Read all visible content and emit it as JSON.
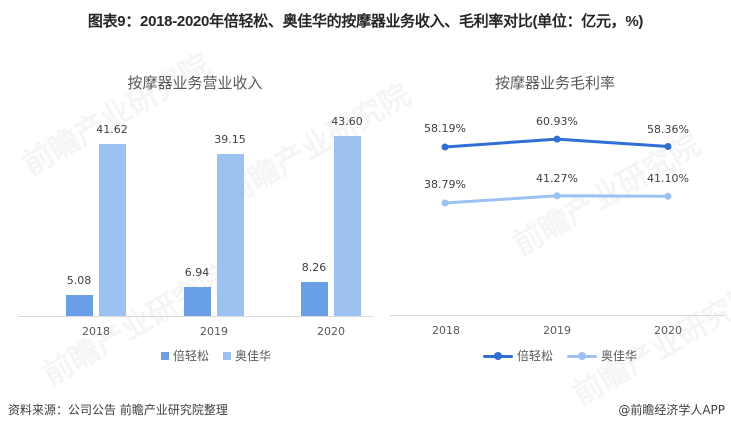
{
  "figure_title": "图表9：2018-2020年倍轻松、奥佳华的按摩器业务收入、毛利率对比(单位：亿元，%)",
  "footer": {
    "source": "资料来源：公司公告 前瞻产业研究院整理",
    "credit": "@前瞻经济学人APP"
  },
  "watermark": "前瞻产业研究院",
  "colors": {
    "beiqingsong": "#2f6fd6",
    "beiqingsong_bar": "#6aa0e8",
    "aojiahua": "#9cc2f2"
  },
  "chart_data": [
    {
      "type": "bar",
      "title": "按摩器业务营业收入",
      "categories": [
        "2018",
        "2019",
        "2020"
      ],
      "series": [
        {
          "name": "倍轻松",
          "values": [
            5.08,
            6.94,
            8.26
          ],
          "labels": [
            "5.08",
            "6.94",
            "8.26"
          ]
        },
        {
          "name": "奥佳华",
          "values": [
            41.62,
            39.15,
            43.6
          ],
          "labels": [
            "41.62",
            "39.15",
            "43.60"
          ]
        }
      ],
      "xlabel": "",
      "ylabel": "",
      "unit": "亿元",
      "ylim": [
        0,
        50
      ],
      "grid": false,
      "legend_position": "bottom"
    },
    {
      "type": "line",
      "title": "按摩器业务毛利率",
      "categories": [
        "2018",
        "2019",
        "2020"
      ],
      "series": [
        {
          "name": "倍轻松",
          "values": [
            58.19,
            60.93,
            58.36
          ],
          "labels": [
            "58.19%",
            "60.93%",
            "58.36%"
          ]
        },
        {
          "name": "奥佳华",
          "values": [
            38.79,
            41.27,
            41.1
          ],
          "labels": [
            "38.79%",
            "41.27%",
            "41.10%"
          ]
        }
      ],
      "xlabel": "",
      "ylabel": "",
      "unit": "%",
      "grid": false,
      "legend_position": "bottom"
    }
  ]
}
